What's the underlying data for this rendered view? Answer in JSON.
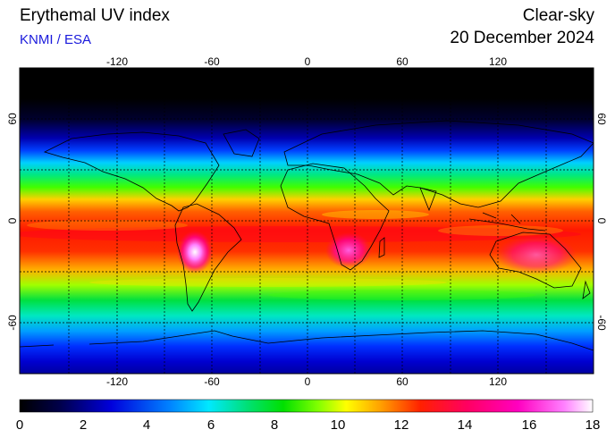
{
  "header": {
    "title": "Erythemal UV index",
    "credit": "KNMI / ESA",
    "mode": "Clear-sky",
    "date": "20 December 2024"
  },
  "map": {
    "lon_ticks": [
      "-120",
      "-60",
      "0",
      "60",
      "120"
    ],
    "lat_ticks": [
      "60",
      "0",
      "-60"
    ],
    "lat_ticks_right": [
      "60",
      "0",
      "-60"
    ],
    "lon_range": [
      -180,
      180
    ],
    "lat_range": [
      -90,
      90
    ],
    "grid": "dashed every 30 degrees"
  },
  "colorbar": {
    "labels": [
      "0",
      "2",
      "4",
      "6",
      "8",
      "10",
      "12",
      "14",
      "16",
      "18"
    ],
    "range": [
      0,
      18
    ],
    "stops": [
      "#000000",
      "#00004a",
      "#0000dc",
      "#0080ff",
      "#00e8ff",
      "#00e070",
      "#00e000",
      "#80ff00",
      "#ffff00",
      "#ffa000",
      "#ff2000",
      "#ff0060",
      "#ff00c0",
      "#ff80ff",
      "#ffffff"
    ]
  }
}
